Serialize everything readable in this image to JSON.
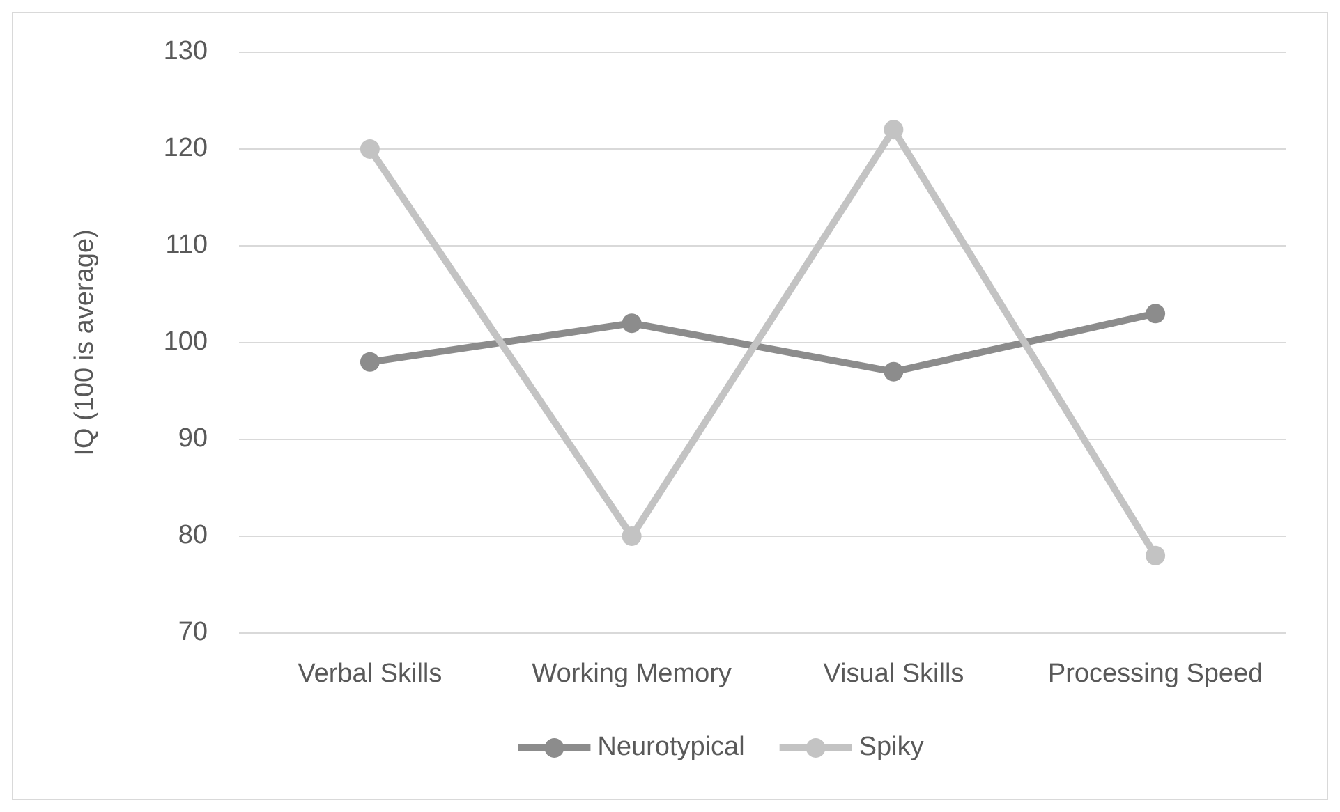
{
  "chart_data": {
    "type": "line",
    "y_label": "IQ (100 is average)",
    "categories": [
      "Verbal Skills",
      "Working Memory",
      "Visual Skills",
      "Processing Speed"
    ],
    "series": [
      {
        "name": "Neurotypical",
        "color": "#8c8c8c",
        "values": [
          98,
          102,
          97,
          103
        ]
      },
      {
        "name": "Spiky",
        "color": "#c3c3c3",
        "values": [
          120,
          80,
          122,
          78
        ]
      }
    ],
    "ylim": [
      70,
      130
    ],
    "yticks": [
      70,
      80,
      90,
      100,
      110,
      120,
      130
    ],
    "grid": true,
    "legend": "bottom"
  }
}
